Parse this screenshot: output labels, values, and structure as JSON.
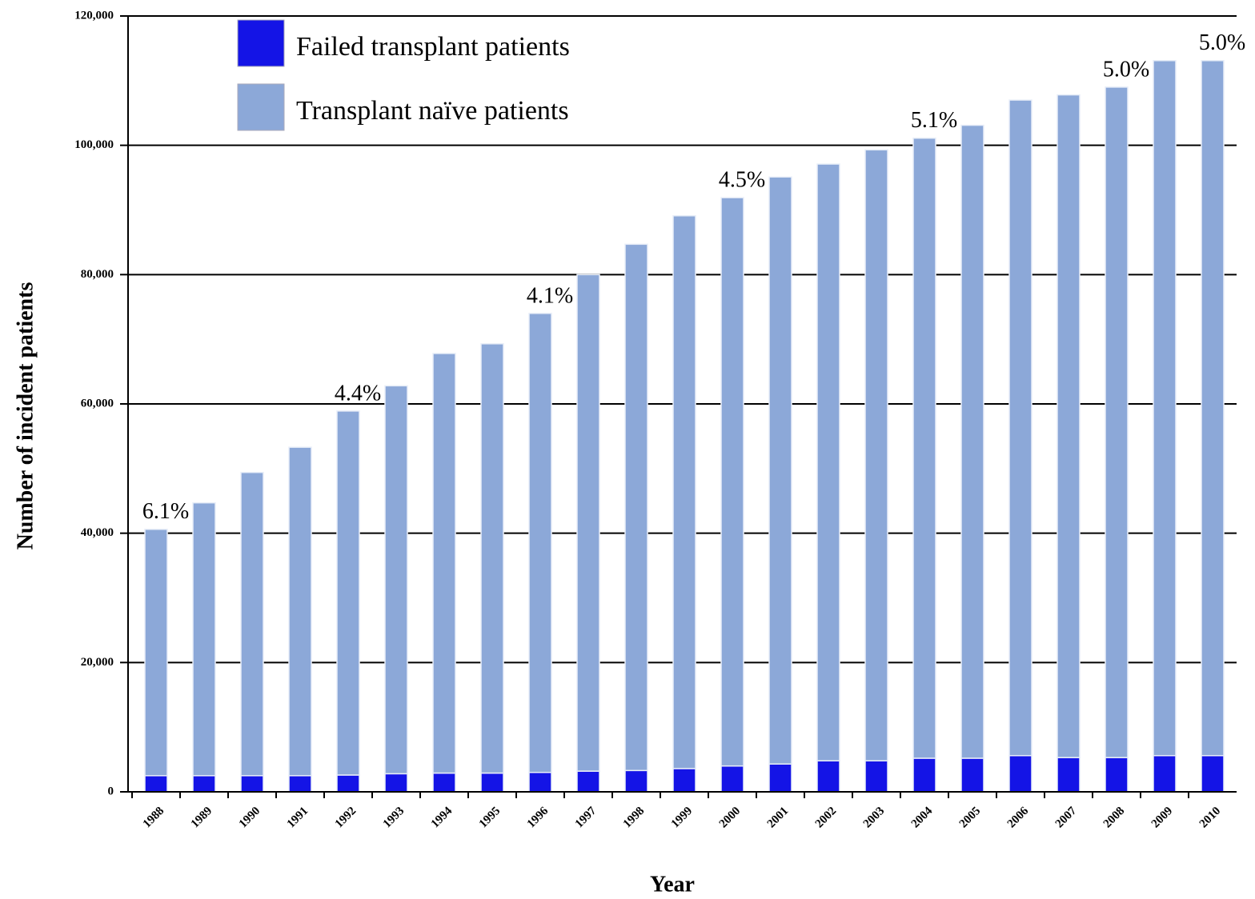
{
  "chart_data": {
    "type": "stacked_bar",
    "x_label": "Year",
    "y_label": "Number of incident patients",
    "categories": [
      "1988",
      "1989",
      "1990",
      "1991",
      "1992",
      "1993",
      "1994",
      "1995",
      "1996",
      "1997",
      "1998",
      "1999",
      "2000",
      "2001",
      "2002",
      "2003",
      "2004",
      "2005",
      "2006",
      "2007",
      "2008",
      "2009",
      "2010"
    ],
    "series": [
      {
        "name": "Failed transplant patients",
        "color": "#1414e6",
        "values": [
          2500,
          2500,
          2500,
          2500,
          2600,
          2800,
          2900,
          2900,
          3000,
          3200,
          3300,
          3600,
          4000,
          4300,
          4800,
          4800,
          5200,
          5200,
          5600,
          5300,
          5300,
          5600,
          5600
        ]
      },
      {
        "name": "Transplant naïve patients",
        "color": "#8ca8d8",
        "values": [
          38100,
          42200,
          46900,
          50800,
          56300,
          60000,
          64900,
          66400,
          71000,
          76800,
          81400,
          85500,
          87900,
          90800,
          92300,
          94500,
          95900,
          97900,
          101400,
          102500,
          103700,
          107500,
          107500
        ]
      }
    ],
    "annotations": [
      {
        "x": "1988",
        "label": "6.1%"
      },
      {
        "x": "1992",
        "label": "4.4%"
      },
      {
        "x": "1996",
        "label": "4.1%"
      },
      {
        "x": "2000",
        "label": "4.5%"
      },
      {
        "x": "2004",
        "label": "5.1%"
      },
      {
        "x": "2008",
        "label": "5.0%"
      },
      {
        "x": "2010",
        "label": "5.0%"
      }
    ],
    "ylim": [
      0,
      120000
    ],
    "yticks": [
      0,
      {
        "value": 20000,
        "label": "20,000"
      },
      {
        "value": 40000,
        "label": "40,000"
      },
      {
        "value": 60000,
        "label": "60,000"
      },
      {
        "value": 80000,
        "label": "80,000"
      },
      {
        "value": 100000,
        "label": "100,000"
      },
      {
        "value": 120000,
        "label": "120,000"
      }
    ],
    "grid": true
  }
}
